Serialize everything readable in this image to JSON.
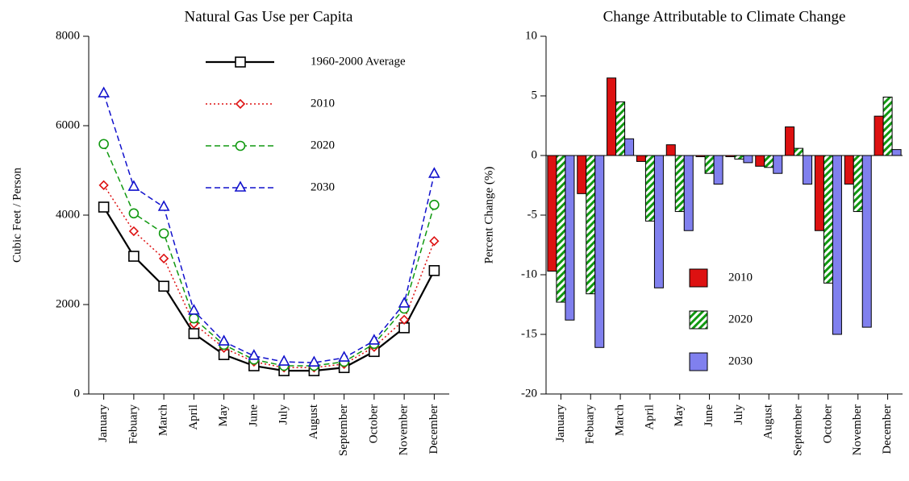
{
  "chart_data": [
    {
      "type": "line",
      "title": "Natural Gas Use per Capita",
      "y_label": "Cubic Feet / Person",
      "categories": [
        "January",
        "Febuary",
        "March",
        "April",
        "May",
        "June",
        "July",
        "August",
        "September",
        "October",
        "November",
        "December"
      ],
      "ylim": [
        0,
        8000
      ],
      "yticks": [
        0,
        2000,
        4000,
        6000,
        8000
      ],
      "legend": "top-right",
      "series": [
        {
          "name": "1960-2000  Average",
          "color": "#000000",
          "marker": "square",
          "dash": "solid",
          "values": [
            4180,
            3080,
            2410,
            1350,
            880,
            630,
            520,
            520,
            590,
            950,
            1480,
            2760
          ]
        },
        {
          "name": "2010",
          "color": "#dd1111",
          "marker": "diamond",
          "dash": "dotted",
          "values": [
            4670,
            3640,
            3030,
            1570,
            1030,
            720,
            590,
            590,
            670,
            1050,
            1660,
            3420
          ]
        },
        {
          "name": "2020",
          "color": "#119911",
          "marker": "circle",
          "dash": "dashed",
          "values": [
            5590,
            4040,
            3590,
            1690,
            1100,
            770,
            630,
            630,
            720,
            1120,
            1910,
            4230
          ]
        },
        {
          "name": "2030",
          "color": "#1111cc",
          "marker": "triangle",
          "dash": "dashed",
          "values": [
            6720,
            4630,
            4180,
            1860,
            1170,
            850,
            720,
            700,
            810,
            1190,
            2020,
            4920
          ]
        }
      ]
    },
    {
      "type": "bar",
      "title": "Change Attributable to Climate Change",
      "y_label": "Percent Change (%)",
      "categories": [
        "January",
        "Febuary",
        "March",
        "April",
        "May",
        "June",
        "July",
        "August",
        "September",
        "October",
        "November",
        "December"
      ],
      "ylim": [
        -20,
        10
      ],
      "yticks": [
        -20,
        -15,
        -10,
        -5,
        0,
        5,
        10
      ],
      "legend": "center-left",
      "series": [
        {
          "name": "2010",
          "color": "#dd1111",
          "values": [
            -9.7,
            -3.2,
            6.5,
            -0.5,
            0.9,
            -0.1,
            -0.1,
            -0.9,
            2.4,
            -6.3,
            -2.4,
            3.3
          ]
        },
        {
          "name": "2020",
          "color": "#119911",
          "pattern": "stripes",
          "values": [
            -12.3,
            -11.6,
            4.5,
            -5.5,
            -4.7,
            -1.5,
            -0.3,
            -1.0,
            0.6,
            -10.7,
            -4.7,
            4.9
          ]
        },
        {
          "name": "2030",
          "color": "#8080ee",
          "values": [
            -13.8,
            -16.1,
            1.4,
            -11.1,
            -6.3,
            -2.4,
            -0.6,
            -1.5,
            -2.4,
            -15.0,
            -14.4,
            0.5
          ]
        }
      ]
    }
  ]
}
